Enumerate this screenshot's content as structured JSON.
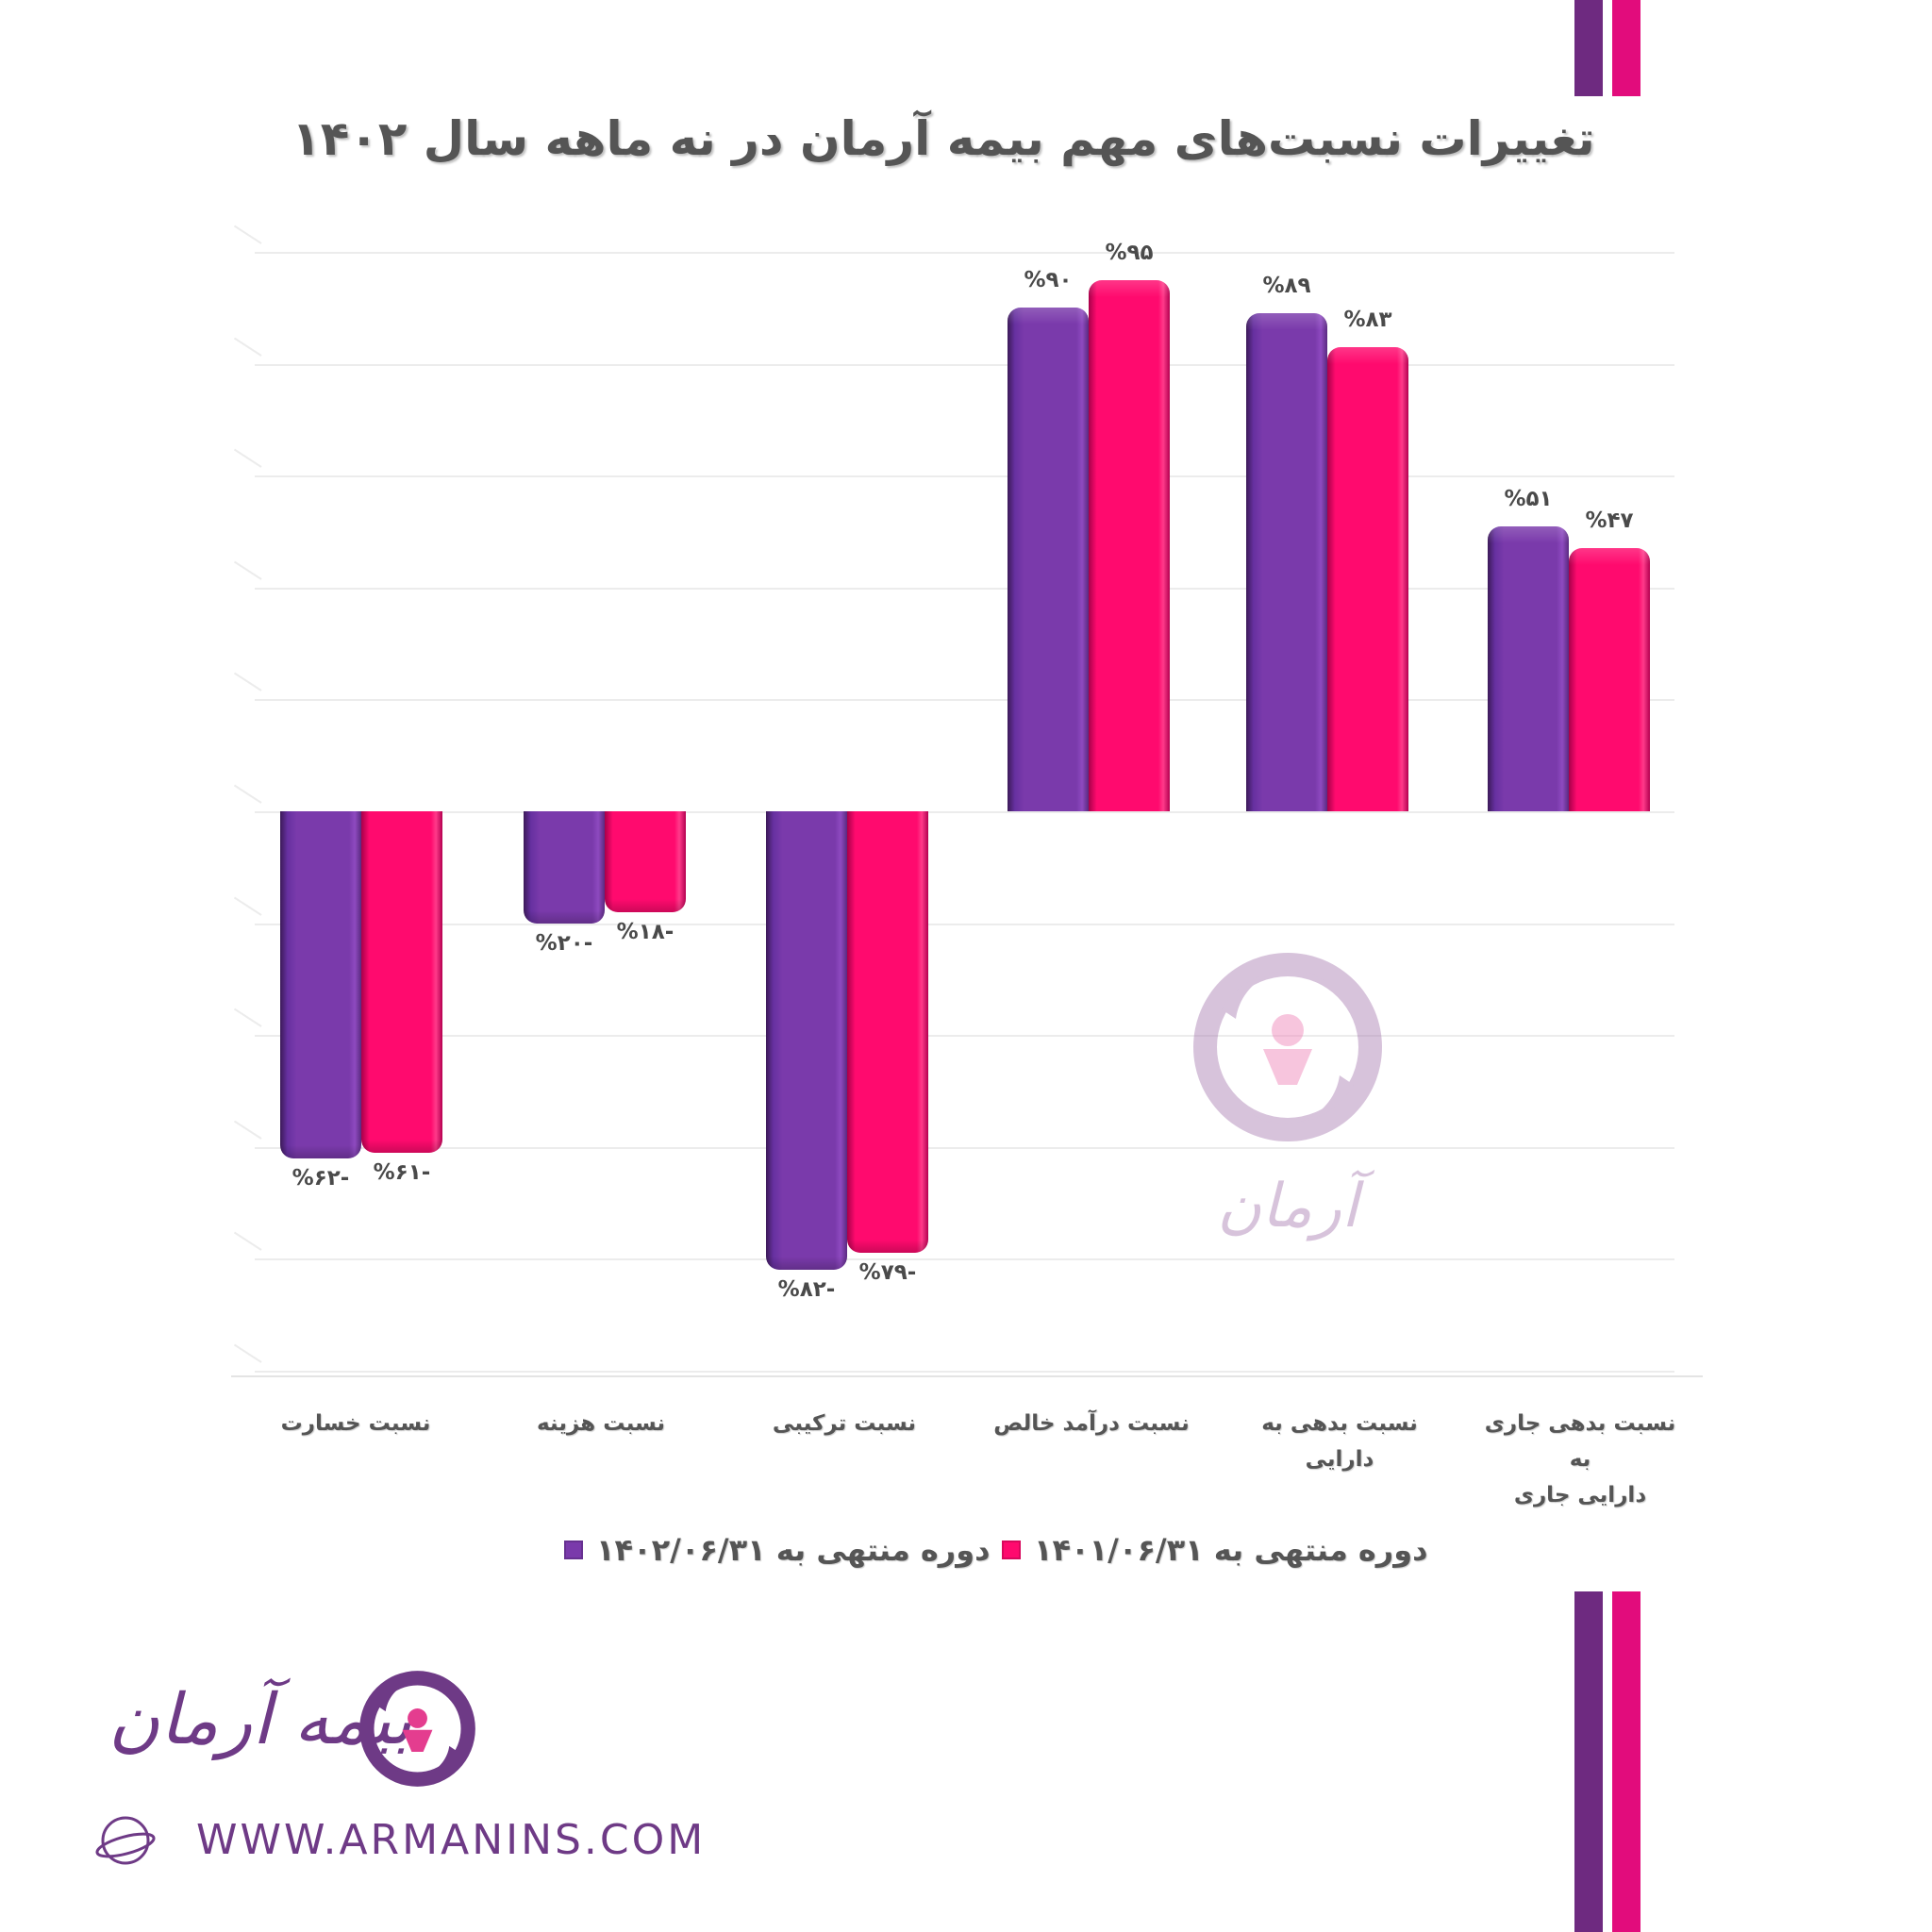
{
  "title": "تغییرات نسبت‌های مهم بیمه آرمان در نه ماهه سال ۱۴۰۲",
  "colors": {
    "series_1402": "#7a3aab",
    "series_1401": "#ff0a6e",
    "brand_purple": "#6e2a80",
    "brand_pink": "#e20c7c",
    "text_gray": "#555555",
    "grid": "#ececec"
  },
  "chart_data": {
    "type": "bar",
    "title": "تغییرات نسبت‌های مهم بیمه آرمان در نه ماهه سال ۱۴۰۲",
    "xlabel": "",
    "ylabel": "",
    "ylim": [
      -100,
      100
    ],
    "grid": true,
    "legend_position": "bottom",
    "categories": [
      "نسبت خسارت",
      "نسبت هزینه",
      "نسبت ترکیبی",
      "نسبت درآمد خالص",
      "نسبت بدهی به دارایی",
      "نسبت بدهی جاری به دارایی جاری"
    ],
    "series": [
      {
        "name": "دوره منتهی به ۱۴۰۲/۰۶/۳۱",
        "color": "#7a3aab",
        "values": [
          -62,
          -20,
          -82,
          90,
          89,
          51
        ],
        "labels": [
          "%۶۲-",
          "%۲۰-",
          "%۸۲-",
          "%۹۰",
          "%۸۹",
          "%۵۱"
        ]
      },
      {
        "name": "دوره منتهی به ۱۴۰۱/۰۶/۳۱",
        "color": "#ff0a6e",
        "values": [
          -61,
          -18,
          -79,
          95,
          83,
          47
        ],
        "labels": [
          "%۶۱-",
          "%۱۸-",
          "%۷۹-",
          "%۹۵",
          "%۸۳",
          "%۴۷"
        ]
      }
    ]
  },
  "categories_display": {
    "c0": "نسبت خسارت",
    "c1": "نسبت هزینه",
    "c2": "نسبت ترکیبی",
    "c3": "نسبت درآمد خالص",
    "c4": "نسبت بدهی به دارایی",
    "c5_line1": "نسبت بدهی جاری به",
    "c5_line2": "دارایی جاری"
  },
  "legend": {
    "item_1401": "دوره منتهی به ۱۴۰۱/۰۶/۳۱",
    "item_1402": "دوره منتهی به ۱۴۰۲/۰۶/۳۱"
  },
  "brand": {
    "name_fa": "بیمه آرمان",
    "website": "WWW.ARMANINS.COM",
    "logo_icon": "arman-emblem-icon",
    "globe_icon": "globe-icon"
  }
}
